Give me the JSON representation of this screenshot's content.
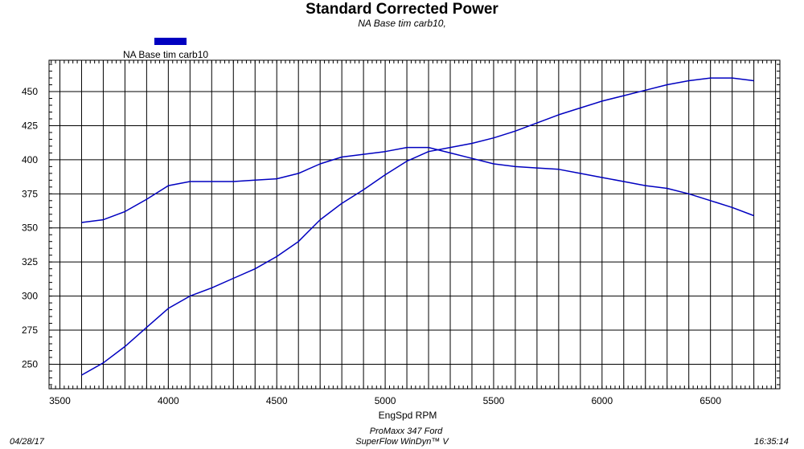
{
  "chart_data": {
    "type": "line",
    "title": "Standard Corrected Power",
    "subtitle": "NA Base tim carb10,",
    "xlabel": "EngSpd RPM",
    "ylabel": "",
    "xlim": [
      3450,
      6820
    ],
    "ylim": [
      232,
      473
    ],
    "x_ticks": [
      3500,
      4000,
      4500,
      5000,
      5500,
      6000,
      6500
    ],
    "y_ticks": [
      250,
      275,
      300,
      325,
      350,
      375,
      400,
      425,
      450
    ],
    "grid": true,
    "legend": {
      "placement": "top-left",
      "entries": [
        "NA Base tim carb10"
      ]
    },
    "series": [
      {
        "name": "NA Base tim carb10",
        "color": "#0000c0",
        "x": [
          3600,
          3700,
          3800,
          3900,
          4000,
          4100,
          4200,
          4300,
          4400,
          4500,
          4600,
          4700,
          4800,
          4900,
          5000,
          5100,
          5200,
          5300,
          5400,
          5500,
          5600,
          5700,
          5800,
          5900,
          6000,
          6100,
          6200,
          6300,
          6400,
          6500,
          6600,
          6700
        ],
        "values": [
          242,
          251,
          263,
          277,
          291,
          300,
          306,
          313,
          320,
          329,
          340,
          356,
          368,
          378,
          389,
          399,
          406,
          409,
          412,
          416,
          421,
          427,
          433,
          438,
          443,
          447,
          451,
          455,
          458,
          460,
          460,
          458
        ]
      },
      {
        "name": "",
        "color": "#0000c0",
        "x": [
          3600,
          3700,
          3800,
          3900,
          4000,
          4100,
          4200,
          4300,
          4400,
          4500,
          4600,
          4700,
          4800,
          4900,
          5000,
          5100,
          5200,
          5300,
          5400,
          5500,
          5600,
          5700,
          5800,
          5900,
          6000,
          6100,
          6200,
          6300,
          6400,
          6500,
          6600,
          6700
        ],
        "values": [
          354,
          356,
          362,
          371,
          381,
          384,
          384,
          384,
          385,
          386,
          390,
          397,
          402,
          404,
          406,
          409,
          409,
          405,
          401,
          397,
          395,
          394,
          393,
          390,
          387,
          384,
          381,
          379,
          375,
          370,
          365,
          359
        ]
      }
    ]
  },
  "footer": {
    "date": "04/28/17",
    "engine": "ProMaxx 347 Ford",
    "software": "SuperFlow WinDyn™ V",
    "time": "16:35:14"
  }
}
